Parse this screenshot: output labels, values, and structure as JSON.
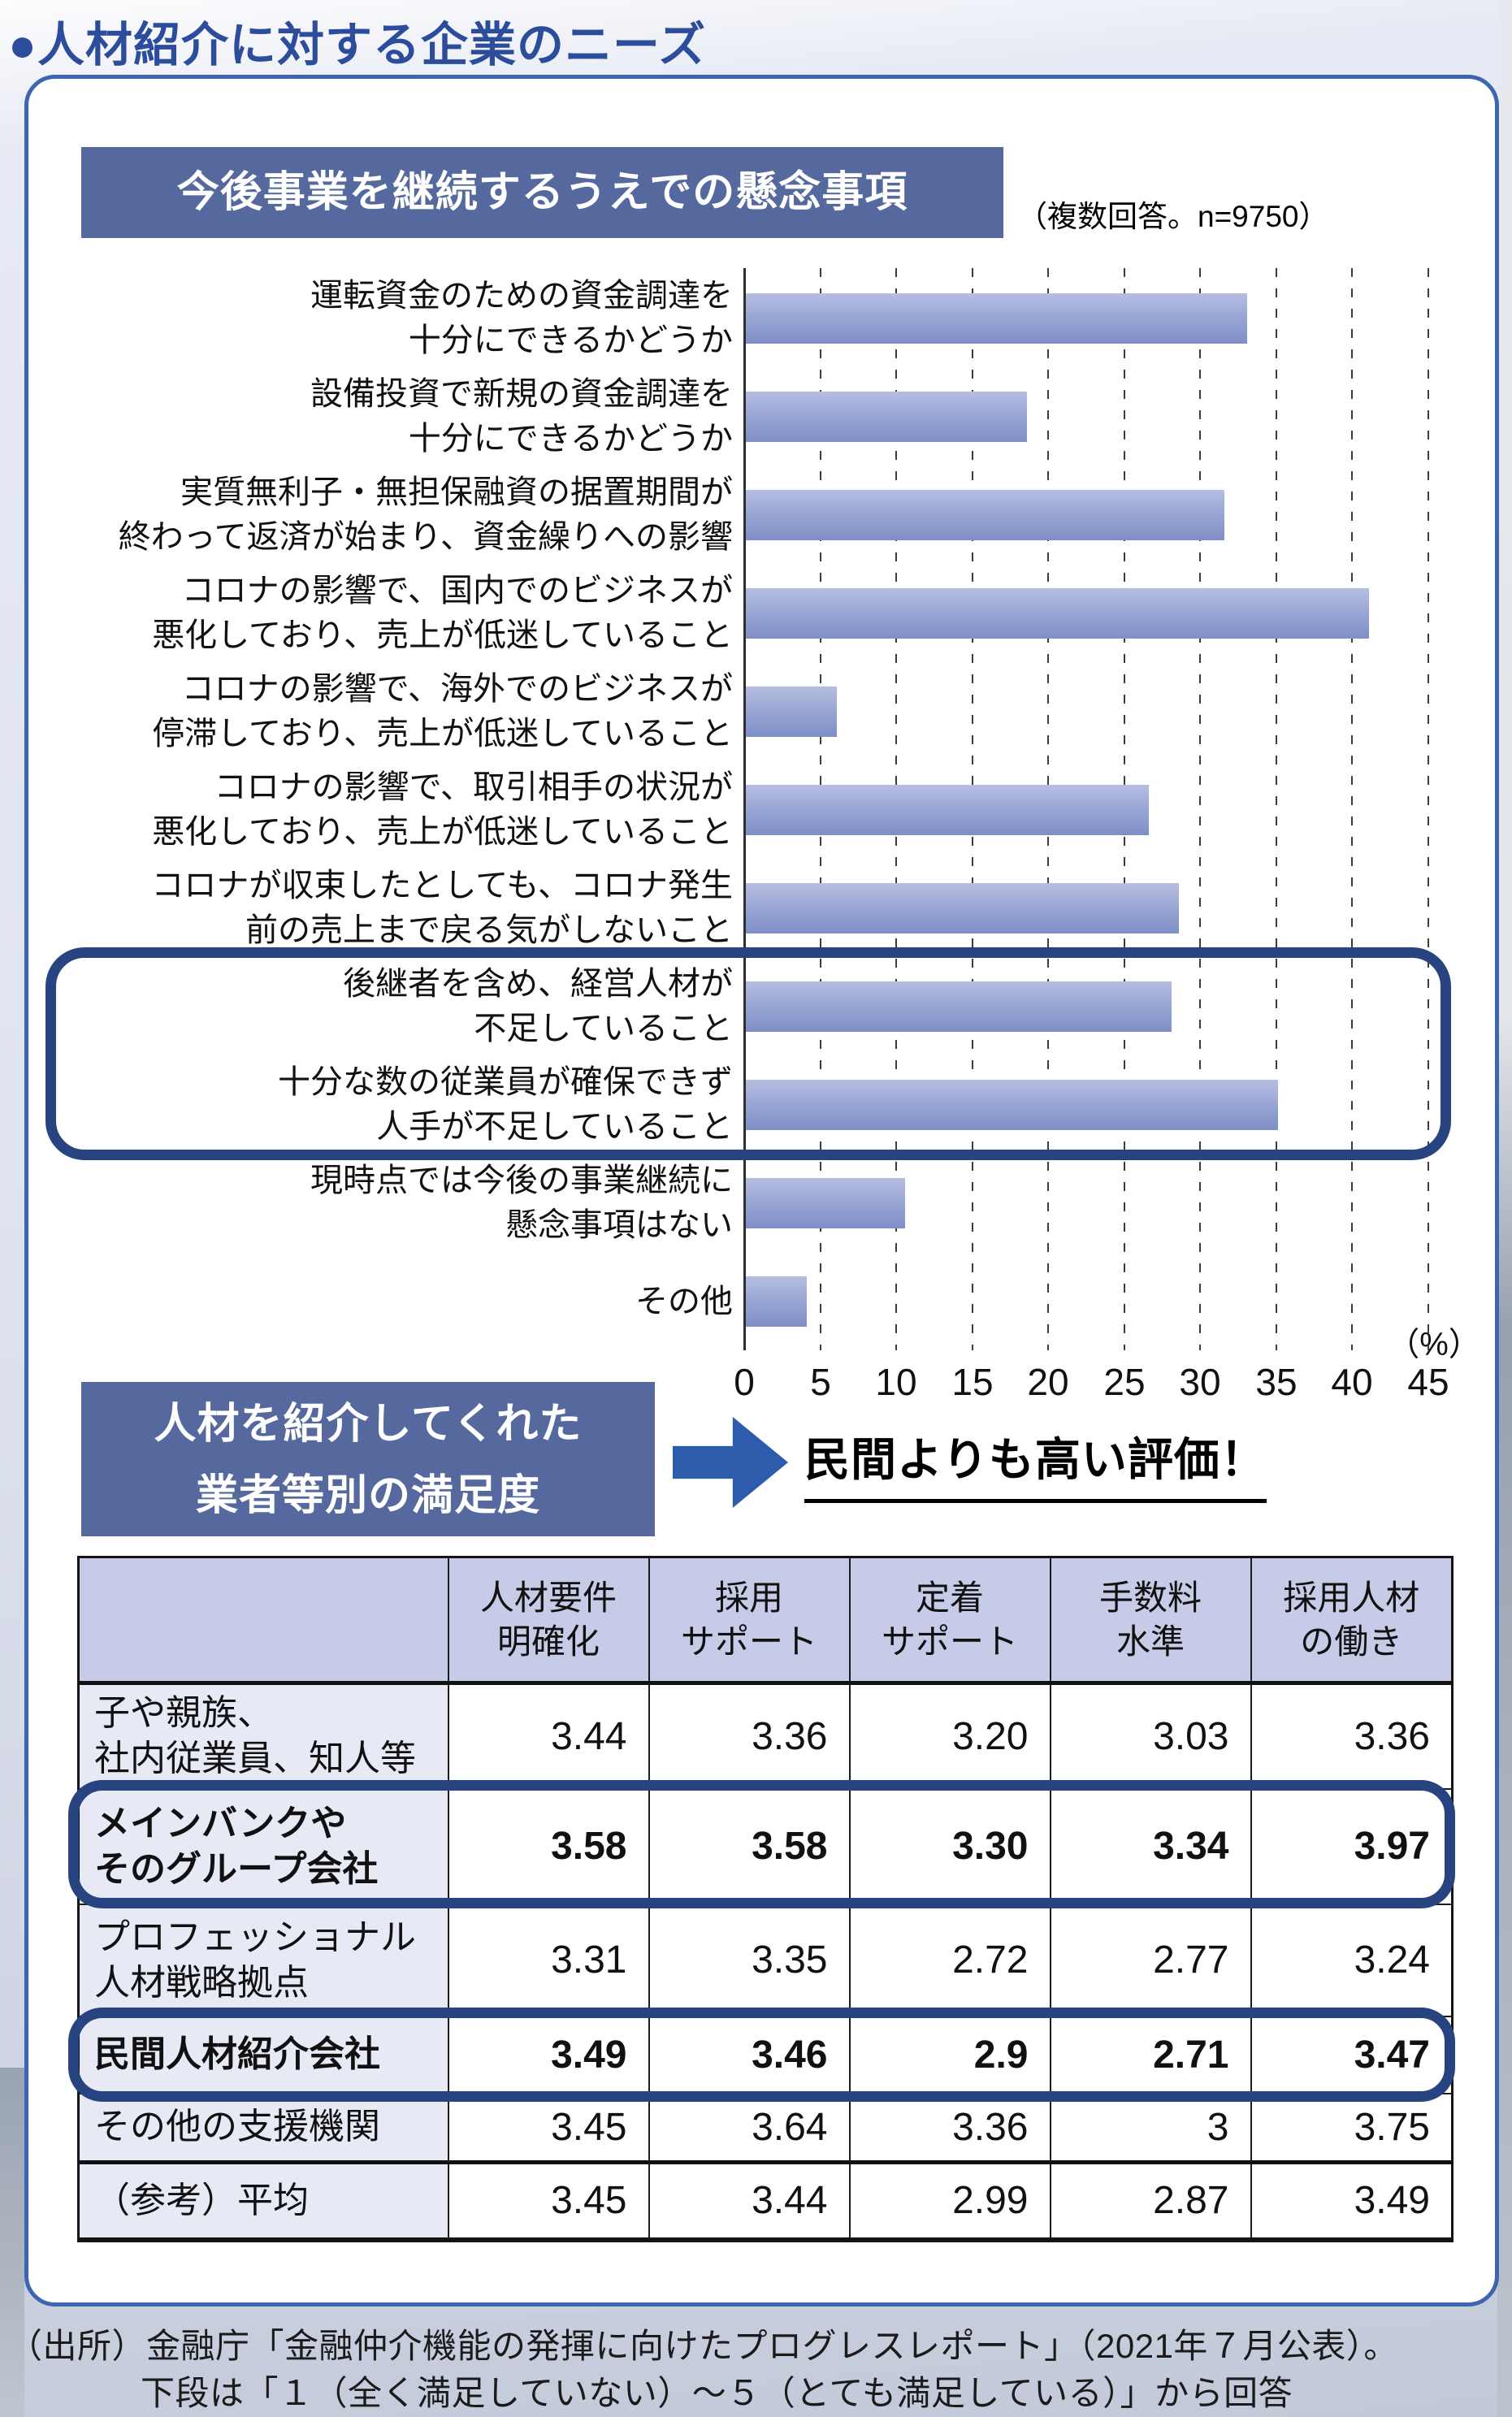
{
  "title": "●人材紹介に対する企業のニーズ",
  "chart_data": {
    "type": "bar",
    "orientation": "horizontal",
    "title": "今後事業を継続するうえでの懸念事項",
    "note": "（複数回答。n=9750）",
    "unit": "（%）",
    "xlim": [
      0,
      45
    ],
    "tick_step": 5,
    "grid": "dashed-vertical",
    "categories": [
      [
        "運転資金のための資金調達を",
        "十分にできるかどうか"
      ],
      [
        "設備投資で新規の資金調達を",
        "十分にできるかどうか"
      ],
      [
        "実質無利子・無担保融資の据置期間が",
        "終わって返済が始まり、資金繰りへの影響"
      ],
      [
        "コロナの影響で、国内でのビジネスが",
        "悪化しており、売上が低迷していること"
      ],
      [
        "コロナの影響で、海外でのビジネスが",
        "停滞しており、売上が低迷していること"
      ],
      [
        "コロナの影響で、取引相手の状況が",
        "悪化しており、売上が低迷していること"
      ],
      [
        "コロナが収束したとしても、コロナ発生",
        "前の売上まで戻る気がしないこと"
      ],
      [
        "後継者を含め、経営人材が",
        "不足していること"
      ],
      [
        "十分な数の従業員が確保できず",
        "人手が不足していること"
      ],
      [
        "現時点では今後の事業継続に",
        "懸念事項はない"
      ],
      [
        "その他"
      ]
    ],
    "values": [
      33,
      18.5,
      31.5,
      41,
      6,
      26.5,
      28.5,
      28,
      35,
      10.5,
      4
    ],
    "highlighted_indices": [
      7,
      8
    ]
  },
  "satisfaction_section": {
    "header_lines": [
      "人材を紹介してくれた",
      "業者等別の満足度"
    ],
    "arrow_note": "民間よりも高い評価！",
    "table": {
      "corner_label": "",
      "columns": [
        [
          "人材要件",
          "明確化"
        ],
        [
          "採用",
          "サポート"
        ],
        [
          "定着",
          "サポート"
        ],
        [
          "手数料",
          "水準"
        ],
        [
          "採用人材",
          "の働き"
        ]
      ],
      "rows": [
        {
          "label": [
            "子や親族、",
            "社内従業員、知人等"
          ],
          "values": [
            "3.44",
            "3.36",
            "3.20",
            "3.03",
            "3.36"
          ],
          "highlighted": false
        },
        {
          "label": [
            "メインバンクや",
            "そのグループ会社"
          ],
          "values": [
            "3.58",
            "3.58",
            "3.30",
            "3.34",
            "3.97"
          ],
          "highlighted": true
        },
        {
          "label": [
            "プロフェッショナル",
            "人材戦略拠点"
          ],
          "values": [
            "3.31",
            "3.35",
            "2.72",
            "2.77",
            "3.24"
          ],
          "highlighted": false
        },
        {
          "label": [
            "民間人材紹介会社"
          ],
          "values": [
            "3.49",
            "3.46",
            "2.9",
            "2.71",
            "3.47"
          ],
          "highlighted": true
        },
        {
          "label": [
            "その他の支援機関"
          ],
          "values": [
            "3.45",
            "3.64",
            "3.36",
            "3",
            "3.75"
          ],
          "highlighted": false
        },
        {
          "label": [
            "（参考）平均"
          ],
          "values": [
            "3.45",
            "3.44",
            "2.99",
            "2.87",
            "3.49"
          ],
          "highlighted": false,
          "thick_top": true
        }
      ]
    }
  },
  "source": {
    "line1": "（出所）金融庁「金融仲介機能の発揮に向けたプログレスレポート」（2021年７月公表）。",
    "line2": "下段は「１（全く満足していない）～５（とても満足している）」から回答"
  },
  "colors": {
    "title_text": "#2C4C9C",
    "panel_border": "#3D65B0",
    "section_header_bg": "#56699E",
    "section_header_text": "#FFFFFF",
    "bar_top": "#B6BEE1",
    "bar_bottom": "#7E8FC7",
    "highlight_border": "#274480",
    "arrow": "#2D5CAC",
    "table_header_bg": "#C6CCE7",
    "table_label_bg": "#E7E9F5",
    "grid_line": "#3C3C3C",
    "text": "#111111"
  }
}
